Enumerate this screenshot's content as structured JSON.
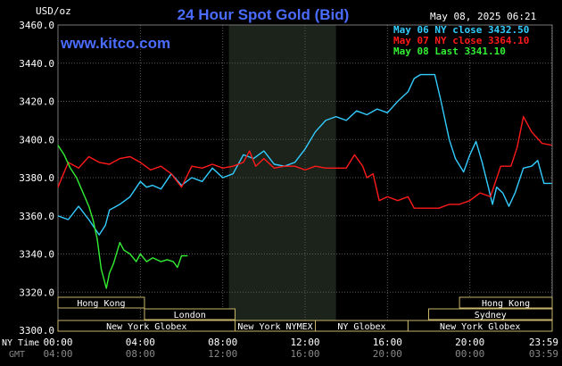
{
  "header": {
    "title": "24 Hour Spot Gold (Bid)",
    "unit": "USD/oz",
    "timestamp": "May 08, 2025 06:21",
    "brand": "www.kitco.com"
  },
  "axis_labels": {
    "ny_time": "NY Time",
    "gmt": "GMT"
  },
  "colors": {
    "background": "#000000",
    "title": "#4a6cff",
    "grid": "#5a5a5a",
    "shade": "#1b231b",
    "may06": "#33ccff",
    "may07": "#ff1a1a",
    "may08": "#33ee33",
    "session_box": "#c8b46a",
    "session_text": "#ffffff",
    "axis_text": "#ffffff",
    "gmt_text": "#888888"
  },
  "sessions": [
    {
      "label": "Hong Kong",
      "start": 0.0,
      "end": 4.2,
      "row": 0
    },
    {
      "label": "London",
      "start": 4.2,
      "end": 8.6,
      "row": 1
    },
    {
      "label": "New York Globex",
      "start": 0.0,
      "end": 8.6,
      "row": 2
    },
    {
      "label": "New York NYMEX",
      "start": 8.6,
      "end": 12.5,
      "row": 2
    },
    {
      "label": "NY Globex",
      "start": 12.5,
      "end": 17.0,
      "row": 2
    },
    {
      "label": "New York Globex",
      "start": 17.0,
      "end": 24.0,
      "row": 2
    },
    {
      "label": "Sydney",
      "start": 18.0,
      "end": 24.0,
      "row": 1
    },
    {
      "label": "Hong Kong",
      "start": 19.5,
      "end": 24.0,
      "row": 0
    }
  ],
  "shaded_region": {
    "start": 8.3,
    "end": 13.5
  },
  "chart_data": {
    "type": "line",
    "title": "24 Hour Spot Gold (Bid)",
    "ylabel": "USD/oz",
    "ylim": [
      3300,
      3460
    ],
    "yticks": [
      3300,
      3320,
      3340,
      3360,
      3380,
      3400,
      3420,
      3440,
      3460
    ],
    "ytick_labels": [
      "3300.0",
      "3320.0",
      "3340.0",
      "3360.0",
      "3380.0",
      "3400.0",
      "3420.0",
      "3440.0",
      "3460.0"
    ],
    "xlim": [
      0,
      24
    ],
    "xticks_ny": [
      "00:00",
      "04:00",
      "08:00",
      "12:00",
      "16:00",
      "20:00",
      "23:59"
    ],
    "xticks_gmt": [
      "04:00",
      "08:00",
      "12:00",
      "16:00",
      "20:00",
      "00:00",
      "03:59"
    ],
    "xtick_positions": [
      0,
      4,
      8,
      12,
      16,
      20,
      23.98
    ],
    "grid": true,
    "legend_position": "top-right",
    "series": [
      {
        "name": "May 06 NY close 3432.50",
        "color": "#33ccff",
        "points": [
          [
            0,
            3360
          ],
          [
            0.5,
            3358
          ],
          [
            1,
            3365
          ],
          [
            1.5,
            3358
          ],
          [
            2,
            3350
          ],
          [
            2.3,
            3355
          ],
          [
            2.5,
            3363
          ],
          [
            3,
            3366
          ],
          [
            3.5,
            3370
          ],
          [
            4,
            3378
          ],
          [
            4.3,
            3375
          ],
          [
            4.6,
            3376
          ],
          [
            5,
            3374
          ],
          [
            5.5,
            3382
          ],
          [
            6,
            3376
          ],
          [
            6.5,
            3380
          ],
          [
            7,
            3378
          ],
          [
            7.5,
            3385
          ],
          [
            8,
            3380
          ],
          [
            8.5,
            3382
          ],
          [
            9,
            3392
          ],
          [
            9.5,
            3390
          ],
          [
            10,
            3394
          ],
          [
            10.5,
            3387
          ],
          [
            11,
            3386
          ],
          [
            11.5,
            3388
          ],
          [
            12,
            3395
          ],
          [
            12.5,
            3404
          ],
          [
            13,
            3410
          ],
          [
            13.5,
            3412
          ],
          [
            14,
            3410
          ],
          [
            14.5,
            3415
          ],
          [
            15,
            3413
          ],
          [
            15.5,
            3416
          ],
          [
            16,
            3414
          ],
          [
            16.5,
            3420
          ],
          [
            17,
            3425
          ],
          [
            17.3,
            3432
          ],
          [
            17.6,
            3434
          ],
          [
            18,
            3434
          ],
          [
            18.3,
            3434
          ],
          [
            18.6,
            3420
          ],
          [
            19,
            3400
          ],
          [
            19.3,
            3390
          ],
          [
            19.7,
            3383
          ],
          [
            20,
            3392
          ],
          [
            20.3,
            3399
          ],
          [
            20.6,
            3388
          ],
          [
            20.9,
            3375
          ],
          [
            21.1,
            3366
          ],
          [
            21.3,
            3375
          ],
          [
            21.6,
            3372
          ],
          [
            21.9,
            3365
          ],
          [
            22.2,
            3372
          ],
          [
            22.6,
            3385
          ],
          [
            23,
            3386
          ],
          [
            23.3,
            3389
          ],
          [
            23.6,
            3377
          ],
          [
            23.98,
            3377
          ]
        ]
      },
      {
        "name": "May 07 NY close 3364.10",
        "color": "#ff1a1a",
        "points": [
          [
            0,
            3375
          ],
          [
            0.5,
            3388
          ],
          [
            1,
            3385
          ],
          [
            1.5,
            3391
          ],
          [
            2,
            3388
          ],
          [
            2.5,
            3387
          ],
          [
            3,
            3390
          ],
          [
            3.5,
            3391
          ],
          [
            4,
            3388
          ],
          [
            4.5,
            3384
          ],
          [
            5,
            3386
          ],
          [
            5.5,
            3382
          ],
          [
            6,
            3375
          ],
          [
            6.5,
            3386
          ],
          [
            7,
            3385
          ],
          [
            7.5,
            3387
          ],
          [
            8,
            3385
          ],
          [
            8.5,
            3386
          ],
          [
            9,
            3388
          ],
          [
            9.3,
            3394
          ],
          [
            9.6,
            3386
          ],
          [
            10,
            3390
          ],
          [
            10.5,
            3385
          ],
          [
            11,
            3386
          ],
          [
            11.5,
            3386
          ],
          [
            12,
            3384
          ],
          [
            12.5,
            3386
          ],
          [
            13,
            3385
          ],
          [
            13.5,
            3385
          ],
          [
            14,
            3385
          ],
          [
            14.4,
            3392
          ],
          [
            14.8,
            3386
          ],
          [
            15,
            3380
          ],
          [
            15.3,
            3382
          ],
          [
            15.6,
            3368
          ],
          [
            16,
            3370
          ],
          [
            16.5,
            3368
          ],
          [
            17,
            3370
          ],
          [
            17.3,
            3364
          ],
          [
            18,
            3364
          ],
          [
            18.5,
            3364
          ],
          [
            19,
            3366
          ],
          [
            19.5,
            3366
          ],
          [
            20,
            3368
          ],
          [
            20.5,
            3372
          ],
          [
            21,
            3370
          ],
          [
            21.5,
            3386
          ],
          [
            22,
            3386
          ],
          [
            22.3,
            3396
          ],
          [
            22.6,
            3412
          ],
          [
            23,
            3404
          ],
          [
            23.5,
            3398
          ],
          [
            23.98,
            3397
          ]
        ]
      },
      {
        "name": "May 08 Last 3341.10",
        "color": "#33ee33",
        "points": [
          [
            0,
            3397
          ],
          [
            0.3,
            3392
          ],
          [
            0.6,
            3385
          ],
          [
            0.9,
            3380
          ],
          [
            1.1,
            3375
          ],
          [
            1.3,
            3370
          ],
          [
            1.5,
            3365
          ],
          [
            1.7,
            3358
          ],
          [
            1.9,
            3348
          ],
          [
            2,
            3340
          ],
          [
            2.1,
            3332
          ],
          [
            2.2,
            3328
          ],
          [
            2.35,
            3322
          ],
          [
            2.5,
            3330
          ],
          [
            2.7,
            3335
          ],
          [
            3,
            3346
          ],
          [
            3.2,
            3342
          ],
          [
            3.5,
            3340
          ],
          [
            3.8,
            3336
          ],
          [
            4,
            3340
          ],
          [
            4.3,
            3336
          ],
          [
            4.6,
            3338
          ],
          [
            5,
            3336
          ],
          [
            5.3,
            3337
          ],
          [
            5.6,
            3336
          ],
          [
            5.8,
            3333
          ],
          [
            6,
            3339
          ],
          [
            6.3,
            3339
          ]
        ]
      }
    ]
  }
}
